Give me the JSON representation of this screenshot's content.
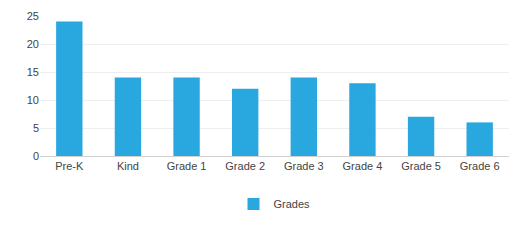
{
  "chart_data": {
    "type": "bar",
    "categories": [
      "Pre-K",
      "Kind",
      "Grade 1",
      "Grade 2",
      "Grade 3",
      "Grade 4",
      "Grade 5",
      "Grade 6"
    ],
    "series": [
      {
        "name": "Grades",
        "color": "#29a8e0",
        "values": [
          24,
          14,
          14,
          12,
          14,
          13,
          7,
          6
        ]
      }
    ],
    "ylim": [
      0,
      25
    ],
    "yticks": [
      0,
      5,
      10,
      15,
      20,
      25
    ],
    "grid": true,
    "legend": "bottom"
  }
}
